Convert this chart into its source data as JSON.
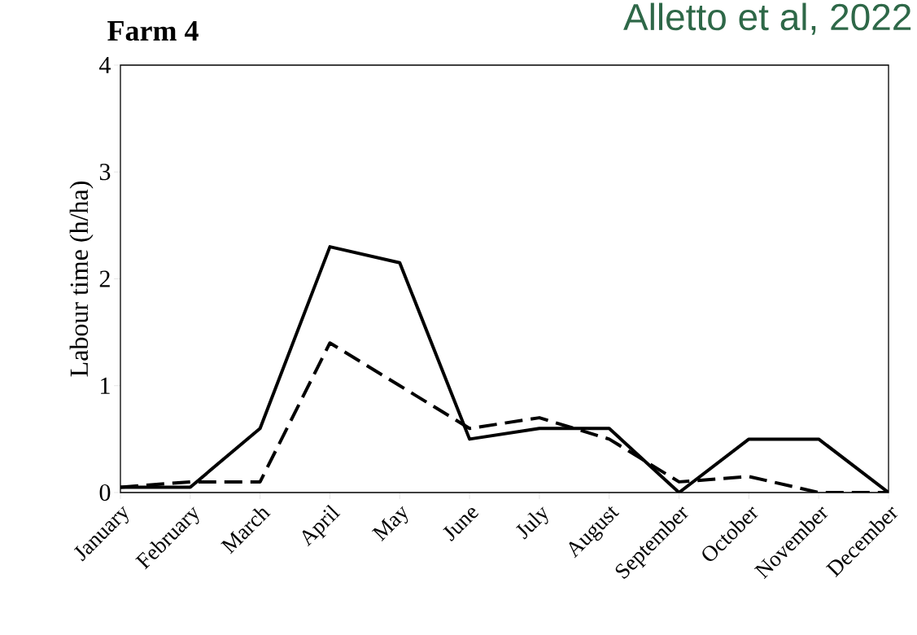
{
  "chart_data": {
    "type": "line",
    "title": "Farm 4",
    "ylabel": "Labour time (h/ha)",
    "annotations": [
      "Alletto et al, 2022"
    ],
    "categories": [
      "January",
      "February",
      "March",
      "April",
      "May",
      "June",
      "July",
      "August",
      "September",
      "October",
      "November",
      "December"
    ],
    "series": [
      {
        "color": "#000000",
        "line_style": "solid",
        "values": [
          0.05,
          0.05,
          0.6,
          2.3,
          2.15,
          0.5,
          0.6,
          0.6,
          0.0,
          0.5,
          0.5,
          0.0
        ]
      },
      {
        "color": "#000000",
        "line_style": "dashed",
        "values": [
          0.05,
          0.1,
          0.1,
          1.4,
          1.0,
          0.6,
          0.7,
          0.5,
          0.1,
          0.15,
          0.0,
          0.0
        ]
      }
    ],
    "ylim": [
      0,
      4
    ],
    "yticks": [
      0,
      1,
      2,
      3,
      4
    ],
    "grid": false,
    "marker": "none"
  }
}
